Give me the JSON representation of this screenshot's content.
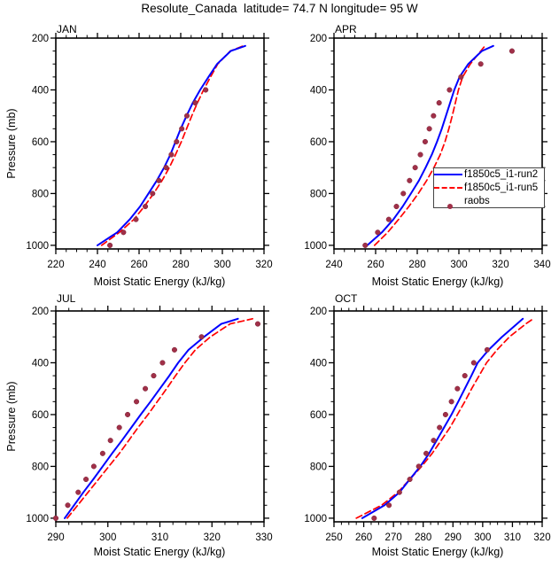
{
  "title": "Resolute_Canada  latitude= 74.7 N longitude= 95 W",
  "xlabel": "Moist Static Energy (kJ/kg)",
  "ylabel": "Pressure (mb)",
  "colors": {
    "run2": "#0000ff",
    "run5": "#ff0000",
    "raobs": "#a03048",
    "axis": "#000000"
  },
  "legend": {
    "items": [
      {
        "label": "f1850c5_i1-run2",
        "type": "line",
        "dash": "solid",
        "color": "#0000ff"
      },
      {
        "label": "f1850c5_i1-run5",
        "type": "line",
        "dash": "dashed",
        "color": "#ff0000"
      },
      {
        "label": "raobs",
        "type": "dot",
        "dash": "none",
        "color": "#a03048"
      }
    ]
  },
  "chart_data": [
    {
      "type": "line",
      "title": "JAN",
      "xlabel": "Moist Static Energy (kJ/kg)",
      "ylabel": "Pressure (mb)",
      "xlim": [
        220,
        320
      ],
      "xticks": [
        220,
        240,
        260,
        280,
        300,
        320
      ],
      "xtick_minor": 5,
      "ylim": [
        200,
        1014
      ],
      "yticks": [
        200,
        400,
        600,
        800,
        1000
      ],
      "ytick_minor": 50,
      "y_inverted": true,
      "grid": false,
      "series": [
        {
          "name": "f1850c5_i1-run2",
          "style": "solid",
          "color": "#0000ff",
          "pressure": [
            1000,
            950,
            900,
            850,
            800,
            750,
            700,
            650,
            600,
            550,
            500,
            450,
            400,
            350,
            300,
            250,
            230
          ],
          "values": [
            240,
            249.5,
            255.5,
            260.5,
            264.5,
            268.5,
            272,
            275,
            277.5,
            280,
            282.8,
            285.8,
            289.3,
            293.3,
            297.5,
            304,
            311
          ]
        },
        {
          "name": "f1850c5_i1-run5",
          "style": "dashed",
          "color": "#ff0000",
          "pressure": [
            1000,
            950,
            900,
            850,
            800,
            750,
            700,
            650,
            600,
            550,
            500,
            450,
            400,
            350,
            300,
            250,
            230
          ],
          "values": [
            242,
            250.5,
            257.5,
            262.5,
            267,
            271,
            274.5,
            277.5,
            280.3,
            282.8,
            285.3,
            288,
            291,
            294.3,
            297.8,
            303.8,
            310
          ]
        },
        {
          "name": "raobs",
          "style": "dots",
          "color": "#a03048",
          "pressure": [
            1000,
            950,
            900,
            850,
            800,
            750,
            700,
            650,
            600,
            550,
            500,
            450,
            400
          ],
          "values": [
            246,
            252.5,
            258.5,
            263,
            266.5,
            269.5,
            273,
            275.5,
            278,
            280.5,
            283,
            287,
            292
          ]
        }
      ]
    },
    {
      "type": "line",
      "title": "APR",
      "xlabel": "Moist Static Energy (kJ/kg)",
      "ylabel": "Pressure (mb)",
      "xlim": [
        240,
        340
      ],
      "xticks": [
        240,
        260,
        280,
        300,
        320,
        340
      ],
      "xtick_minor": 5,
      "ylim": [
        200,
        1014
      ],
      "yticks": [
        200,
        400,
        600,
        800,
        1000
      ],
      "ytick_minor": 50,
      "y_inverted": true,
      "grid": false,
      "series": [
        {
          "name": "f1850c5_i1-run2",
          "style": "solid",
          "color": "#0000ff",
          "pressure": [
            1000,
            950,
            900,
            850,
            800,
            750,
            700,
            650,
            600,
            550,
            500,
            450,
            400,
            350,
            300,
            250,
            230
          ],
          "values": [
            256,
            263,
            268.5,
            273,
            277,
            280.8,
            284,
            287,
            289.5,
            291.8,
            293.8,
            295.8,
            297.8,
            300.3,
            304.5,
            311,
            316.5
          ]
        },
        {
          "name": "f1850c5_i1-run5",
          "style": "dashed",
          "color": "#ff0000",
          "pressure": [
            1000,
            950,
            900,
            850,
            800,
            750,
            700,
            650,
            600,
            550,
            500,
            450,
            400,
            350,
            300,
            250,
            230
          ],
          "values": [
            259.5,
            265.8,
            271,
            276,
            280.5,
            284.5,
            288,
            291,
            293.3,
            295.2,
            296.8,
            298.3,
            299.8,
            301.8,
            305.5,
            310.5,
            312.5
          ]
        },
        {
          "name": "raobs",
          "style": "dots",
          "color": "#a03048",
          "pressure": [
            1000,
            950,
            900,
            850,
            800,
            750,
            700,
            650,
            600,
            550,
            500,
            450,
            400,
            350,
            300,
            250
          ],
          "values": [
            255,
            261,
            266.3,
            270,
            273.3,
            276.3,
            279,
            281.5,
            283.8,
            285.8,
            287.8,
            290.5,
            295.5,
            301,
            310.5,
            325.5
          ]
        }
      ]
    },
    {
      "type": "line",
      "title": "JUL",
      "xlabel": "Moist Static Energy (kJ/kg)",
      "ylabel": "Pressure (mb)",
      "xlim": [
        290,
        330
      ],
      "xticks": [
        290,
        300,
        310,
        320,
        330
      ],
      "xtick_minor": 2.5,
      "ylim": [
        200,
        1014
      ],
      "yticks": [
        200,
        400,
        600,
        800,
        1000
      ],
      "ytick_minor": 50,
      "y_inverted": true,
      "grid": false,
      "series": [
        {
          "name": "f1850c5_i1-run2",
          "style": "solid",
          "color": "#0000ff",
          "pressure": [
            1000,
            950,
            900,
            850,
            800,
            750,
            700,
            650,
            600,
            550,
            500,
            450,
            400,
            350,
            300,
            250,
            230
          ],
          "values": [
            291.7,
            293.5,
            295.3,
            297.2,
            299,
            300.8,
            302.7,
            304.5,
            306.3,
            308.2,
            310,
            311.8,
            313.5,
            315.5,
            318.5,
            321.8,
            325
          ]
        },
        {
          "name": "f1850c5_i1-run5",
          "style": "dashed",
          "color": "#ff0000",
          "pressure": [
            1000,
            950,
            900,
            850,
            800,
            750,
            700,
            650,
            600,
            550,
            500,
            450,
            400,
            350,
            300,
            250,
            230
          ],
          "values": [
            292.2,
            294.2,
            296.2,
            298.2,
            300.2,
            302.2,
            304,
            305.8,
            307.7,
            309.5,
            311.3,
            313,
            314.8,
            316.8,
            319.7,
            323.5,
            327.8
          ]
        },
        {
          "name": "raobs",
          "style": "dots",
          "color": "#a03048",
          "pressure": [
            1000,
            950,
            900,
            850,
            800,
            750,
            700,
            650,
            600,
            550,
            500,
            450,
            400,
            350,
            300,
            250
          ],
          "values": [
            290,
            292.3,
            294.3,
            295.8,
            297.3,
            299,
            300.5,
            302.2,
            303.8,
            305.5,
            307.2,
            308.8,
            310.5,
            312.8,
            318,
            328.8
          ]
        }
      ]
    },
    {
      "type": "line",
      "title": "OCT",
      "xlabel": "Moist Static Energy (kJ/kg)",
      "ylabel": "Pressure (mb)",
      "xlim": [
        250,
        320
      ],
      "xticks": [
        250,
        260,
        270,
        280,
        290,
        300,
        310,
        320
      ],
      "xtick_minor": 2.5,
      "ylim": [
        200,
        1014
      ],
      "yticks": [
        200,
        400,
        600,
        800,
        1000
      ],
      "ytick_minor": 50,
      "y_inverted": true,
      "grid": false,
      "series": [
        {
          "name": "f1850c5_i1-run2",
          "style": "solid",
          "color": "#0000ff",
          "pressure": [
            1000,
            950,
            900,
            850,
            800,
            750,
            700,
            650,
            600,
            550,
            500,
            450,
            400,
            350,
            300,
            250,
            230
          ],
          "values": [
            259.5,
            267,
            272,
            275.5,
            279,
            282,
            284.5,
            287,
            289.5,
            291.8,
            294,
            296.2,
            298.3,
            302,
            306.5,
            311.5,
            313.5
          ]
        },
        {
          "name": "f1850c5_i1-run5",
          "style": "dashed",
          "color": "#ff0000",
          "pressure": [
            1000,
            950,
            900,
            850,
            800,
            750,
            700,
            650,
            600,
            550,
            500,
            450,
            400,
            350,
            300,
            250,
            230
          ],
          "values": [
            257.5,
            266,
            271.5,
            275.5,
            279.5,
            283,
            286,
            289,
            291.5,
            294,
            296.3,
            298.8,
            301.3,
            304.8,
            309,
            314.5,
            317
          ]
        },
        {
          "name": "raobs",
          "style": "dots",
          "color": "#a03048",
          "pressure": [
            1000,
            950,
            900,
            850,
            800,
            750,
            700,
            650,
            600,
            550,
            500,
            450,
            400,
            350
          ],
          "values": [
            263.5,
            268.5,
            272,
            275.5,
            278.5,
            281,
            283.5,
            285.5,
            287.5,
            289.5,
            291.5,
            294,
            297,
            301.5
          ]
        }
      ]
    }
  ]
}
